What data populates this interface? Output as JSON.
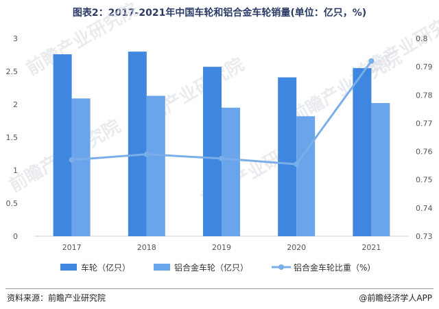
{
  "source_label": "资料来源：前瞻产业研究院",
  "brand_label": "@前瞻经济学人APP",
  "watermark_text": "前瞻产业研究院",
  "colors": {
    "bar1": "#3f86e0",
    "bar2": "#6aa4ea",
    "line": "#7aaee8"
  },
  "chart_data": {
    "type": "bar",
    "title": "图表2：2017-2021年中国车轮和铝合金车轮销量(单位：亿只，%)",
    "categories": [
      "2017",
      "2018",
      "2019",
      "2020",
      "2021"
    ],
    "series": [
      {
        "name": "车轮（亿只）",
        "kind": "bar",
        "axis": "left",
        "values": [
          2.76,
          2.8,
          2.57,
          2.41,
          2.55
        ]
      },
      {
        "name": "铝合金车轮（亿只）",
        "kind": "bar",
        "axis": "left",
        "values": [
          2.09,
          2.13,
          1.95,
          1.82,
          2.02
        ]
      },
      {
        "name": "铝合金车轮比重（%）",
        "kind": "line",
        "axis": "right",
        "values": [
          0.757,
          0.759,
          0.7575,
          0.7555,
          0.792
        ]
      }
    ],
    "ylim_left": [
      0,
      3
    ],
    "yticks_left": [
      "0",
      "0.5",
      "1",
      "1.5",
      "2",
      "2.5",
      "3"
    ],
    "ylim_right": [
      0.73,
      0.8
    ],
    "yticks_right": [
      "0.73",
      "0.74",
      "0.75",
      "0.76",
      "0.77",
      "0.78",
      "0.79",
      "0.8"
    ],
    "grid": false,
    "legend_position": "bottom"
  }
}
